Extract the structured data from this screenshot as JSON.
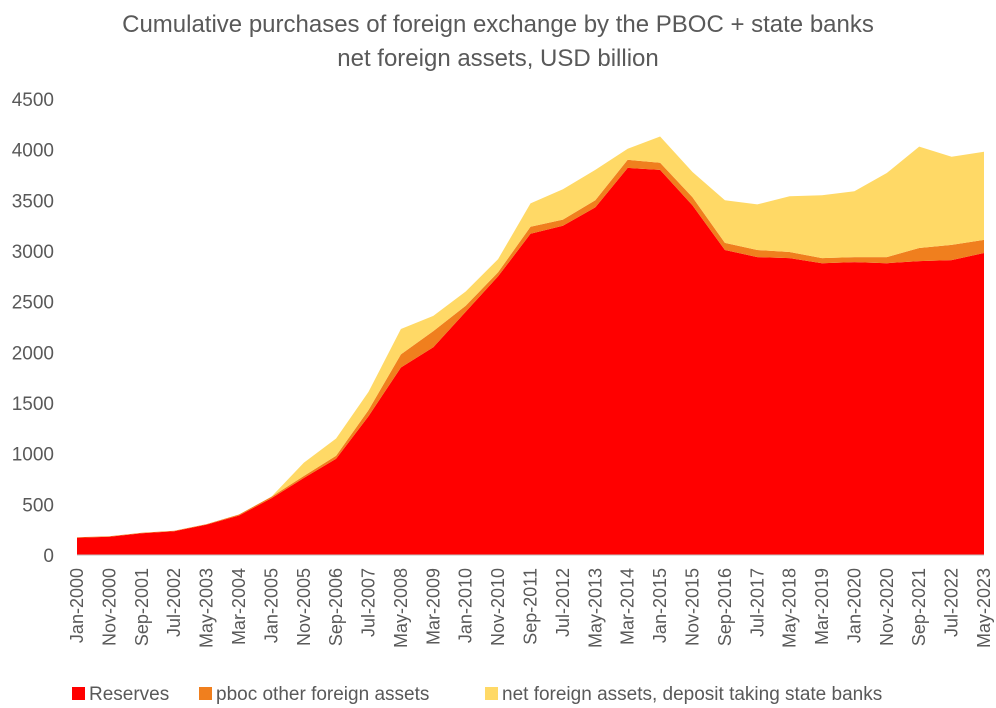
{
  "chart_data": {
    "type": "area",
    "stacked": true,
    "title": [
      "Cumulative purchases of foreign exchange by the PBOC + state banks",
      "net foreign assets, USD billion"
    ],
    "xlabel": "",
    "ylabel": "",
    "ylim": [
      0,
      4500
    ],
    "yticks": [
      0,
      500,
      1000,
      1500,
      2000,
      2500,
      3000,
      3500,
      4000,
      4500
    ],
    "grid": false,
    "legend_position": "bottom",
    "x_tick_labels": [
      "Jan-2000",
      "Nov-2000",
      "Sep-2001",
      "Jul-2002",
      "May-2003",
      "Mar-2004",
      "Jan-2005",
      "Nov-2005",
      "Sep-2006",
      "Jul-2007",
      "May-2008",
      "Mar-2009",
      "Jan-2010",
      "Nov-2010",
      "Sep-2011",
      "Jul-2012",
      "May-2013",
      "Mar-2014",
      "Jan-2015",
      "Nov-2015",
      "Sep-2016",
      "Jul-2017",
      "May-2018",
      "Mar-2019",
      "Jan-2020",
      "Nov-2020",
      "Sep-2021",
      "Jul-2022",
      "May-2023"
    ],
    "series": [
      {
        "name": "Reserves",
        "color": "#ff0000",
        "values": [
          170,
          180,
          215,
          235,
          300,
          390,
          560,
          760,
          950,
          1370,
          1850,
          2050,
          2400,
          2750,
          3170,
          3250,
          3430,
          3820,
          3800,
          3450,
          3010,
          2940,
          2930,
          2880,
          2890,
          2880,
          2900,
          2910,
          2980
        ]
      },
      {
        "name": "pboc other foreign assets",
        "color": "#f07f1e",
        "values": [
          5,
          5,
          5,
          5,
          5,
          10,
          15,
          20,
          30,
          60,
          130,
          160,
          60,
          40,
          70,
          60,
          70,
          80,
          70,
          80,
          70,
          70,
          60,
          50,
          50,
          60,
          130,
          150,
          130
        ]
      },
      {
        "name": "net foreign assets, deposit taking state banks",
        "color": "#ffd966",
        "values": [
          0,
          0,
          0,
          0,
          0,
          0,
          0,
          130,
          170,
          180,
          250,
          150,
          140,
          130,
          230,
          300,
          300,
          110,
          260,
          250,
          420,
          450,
          550,
          620,
          650,
          830,
          1000,
          870,
          870
        ]
      }
    ]
  }
}
